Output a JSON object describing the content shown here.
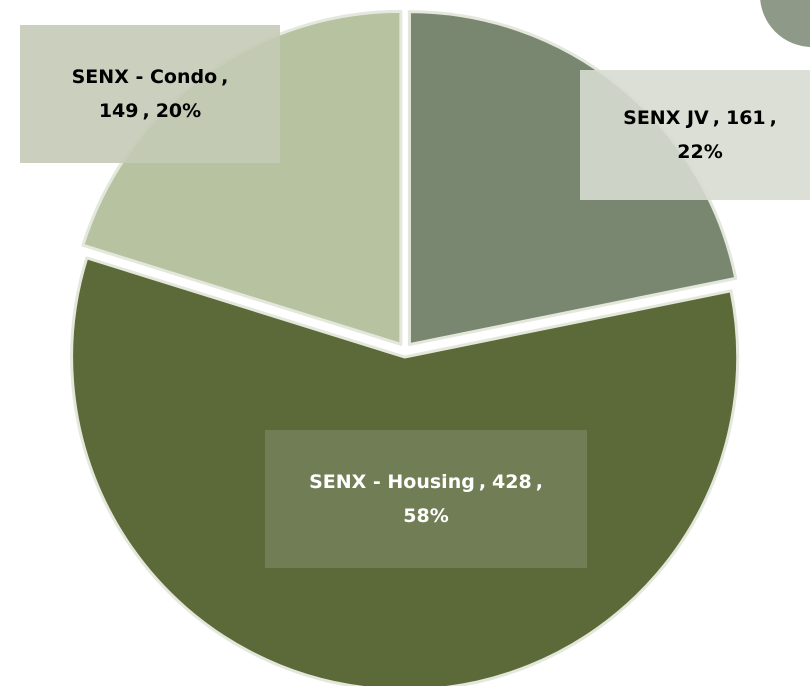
{
  "chart_data": {
    "type": "pie",
    "categories": [
      "SENX JV",
      "SENX - Housing",
      "SENX - Condo"
    ],
    "values": [
      161,
      428,
      149
    ],
    "percent_labels": [
      "22%",
      "58%",
      "20%"
    ],
    "label_separator": ",",
    "colors": [
      "#7a8770",
      "#5c6a39",
      "#b6c2a0"
    ]
  }
}
